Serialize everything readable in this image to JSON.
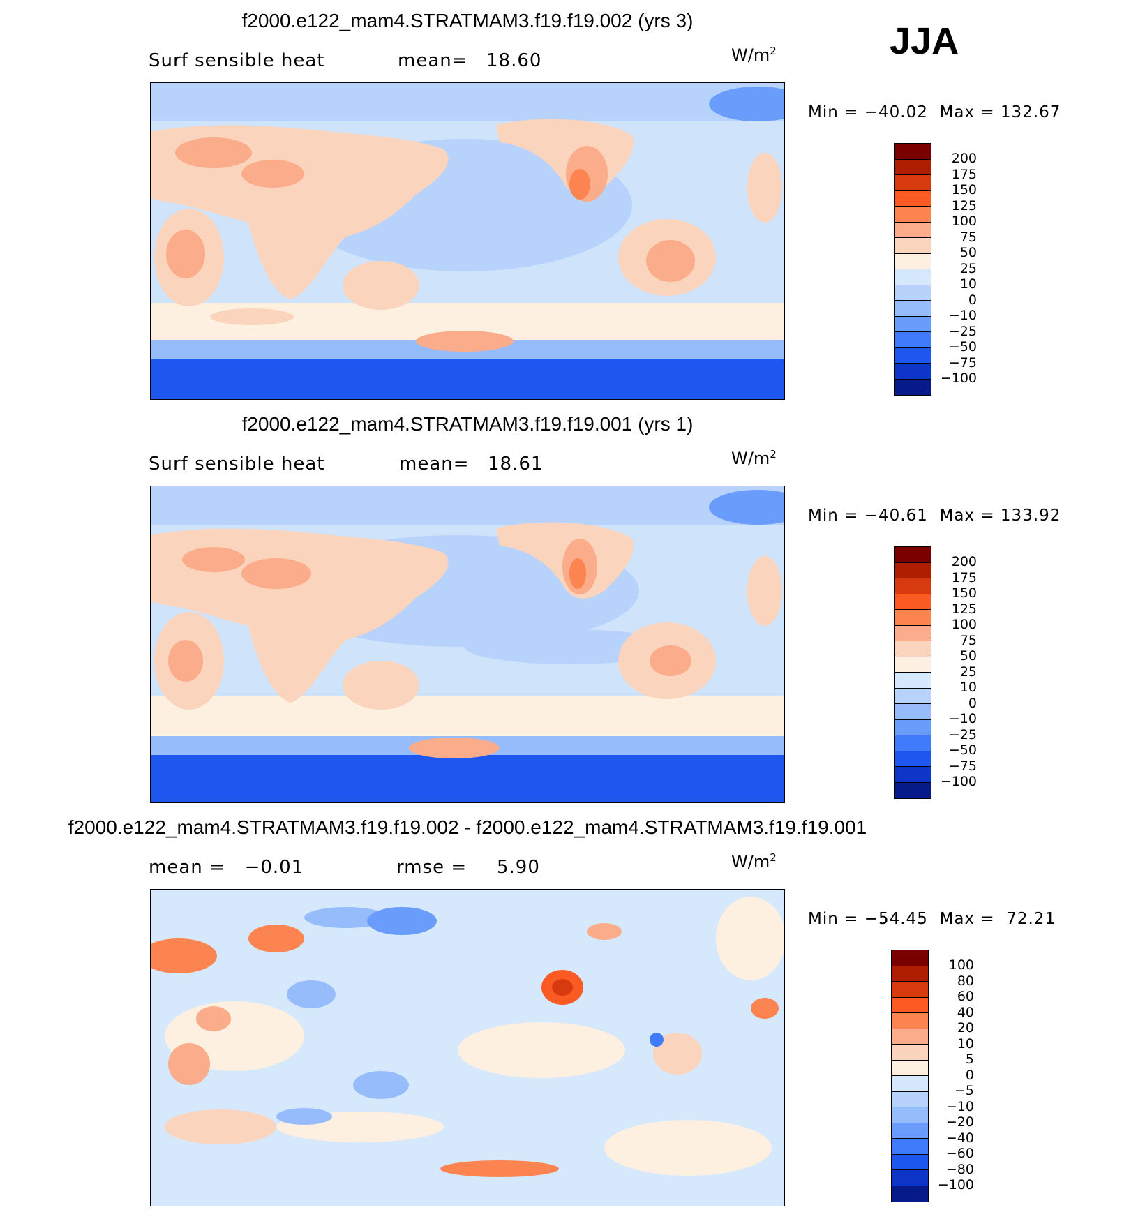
{
  "season": "JJA",
  "units": {
    "base": "W/m",
    "exp": "2"
  },
  "panels": [
    {
      "title": "f2000.e122_mam4.STRATMAM3.f19.f19.002 (yrs 3)",
      "left_label": "Surf sensible heat",
      "stat_label": "mean=",
      "stat_value": "18.60",
      "min_label": "Min =",
      "min_value": "−40.02",
      "max_label": "Max =",
      "max_value": "132.67",
      "colorbar": {
        "levels": [
          "200",
          "175",
          "150",
          "125",
          "100",
          "75",
          "50",
          "25",
          "10",
          "0",
          "−10",
          "−25",
          "−50",
          "−75",
          "−100"
        ],
        "colors": [
          "#7a0000",
          "#b01e00",
          "#d83a10",
          "#fb5a22",
          "#fb8450",
          "#fbac8a",
          "#fbd4bd",
          "#fdf0e0",
          "#d6e8fb",
          "#b7d2fb",
          "#96bcfb",
          "#6a9cfb",
          "#3f7bfb",
          "#1e56f0",
          "#0d35c8",
          "#061a8a"
        ]
      }
    },
    {
      "title": "f2000.e122_mam4.STRATMAM3.f19.f19.001 (yrs 1)",
      "left_label": "Surf sensible heat",
      "stat_label": "mean=",
      "stat_value": "18.61",
      "min_label": "Min =",
      "min_value": "−40.61",
      "max_label": "Max =",
      "max_value": "133.92",
      "colorbar": {
        "levels": [
          "200",
          "175",
          "150",
          "125",
          "100",
          "75",
          "50",
          "25",
          "10",
          "0",
          "−10",
          "−25",
          "−50",
          "−75",
          "−100"
        ],
        "colors": [
          "#7a0000",
          "#b01e00",
          "#d83a10",
          "#fb5a22",
          "#fb8450",
          "#fbac8a",
          "#fbd4bd",
          "#fdf0e0",
          "#d6e8fb",
          "#b7d2fb",
          "#96bcfb",
          "#6a9cfb",
          "#3f7bfb",
          "#1e56f0",
          "#0d35c8",
          "#061a8a"
        ]
      }
    },
    {
      "title": "f2000.e122_mam4.STRATMAM3.f19.f19.002 - f2000.e122_mam4.STRATMAM3.f19.f19.001",
      "left_label": "mean =   −0.01",
      "stat_label": "rmse =",
      "stat_value": "5.90",
      "min_label": "Min =",
      "min_value": "−54.45",
      "max_label": "Max =",
      "max_value": "72.21",
      "colorbar": {
        "levels": [
          "100",
          "80",
          "60",
          "40",
          "20",
          "10",
          "5",
          "0",
          "−5",
          "−10",
          "−20",
          "−40",
          "−60",
          "−80",
          "−100"
        ],
        "colors": [
          "#7a0000",
          "#b01e00",
          "#d83a10",
          "#fb5a22",
          "#fb8450",
          "#fbac8a",
          "#fbd4bd",
          "#fdf0e0",
          "#d6e8fb",
          "#b7d2fb",
          "#96bcfb",
          "#6a9cfb",
          "#3f7bfb",
          "#1e56f0",
          "#0d35c8",
          "#061a8a"
        ]
      }
    }
  ]
}
